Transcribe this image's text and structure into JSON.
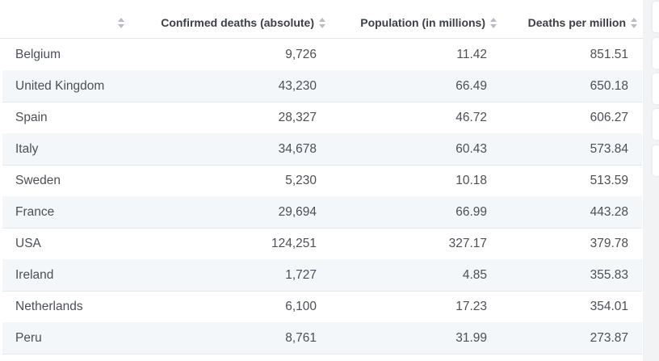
{
  "table": {
    "columns": [
      {
        "label": ""
      },
      {
        "label": "Confirmed deaths (absolute)"
      },
      {
        "label": "Population (in millions)"
      },
      {
        "label": "Deaths per million"
      }
    ],
    "rows": [
      {
        "country": "Belgium",
        "deaths": "9,726",
        "population": "11.42",
        "per_million": "851.51"
      },
      {
        "country": "United Kingdom",
        "deaths": "43,230",
        "population": "66.49",
        "per_million": "650.18"
      },
      {
        "country": "Spain",
        "deaths": "28,327",
        "population": "46.72",
        "per_million": "606.27"
      },
      {
        "country": "Italy",
        "deaths": "34,678",
        "population": "60.43",
        "per_million": "573.84"
      },
      {
        "country": "Sweden",
        "deaths": "5,230",
        "population": "10.18",
        "per_million": "513.59"
      },
      {
        "country": "France",
        "deaths": "29,694",
        "population": "66.99",
        "per_million": "443.28"
      },
      {
        "country": "USA",
        "deaths": "124,251",
        "population": "327.17",
        "per_million": "379.78"
      },
      {
        "country": "Ireland",
        "deaths": "1,727",
        "population": "4.85",
        "per_million": "355.83"
      },
      {
        "country": "Netherlands",
        "deaths": "6,100",
        "population": "17.23",
        "per_million": "354.01"
      },
      {
        "country": "Peru",
        "deaths": "8,761",
        "population": "31.99",
        "per_million": "273.87"
      }
    ]
  },
  "colors": {
    "sort_icon": "#b8bcc2",
    "row_alt_bg": "#f4f7fa",
    "header_text": "#3c4045",
    "body_text": "#4b5056"
  },
  "icons": {
    "sort": "sort-arrows-icon"
  }
}
